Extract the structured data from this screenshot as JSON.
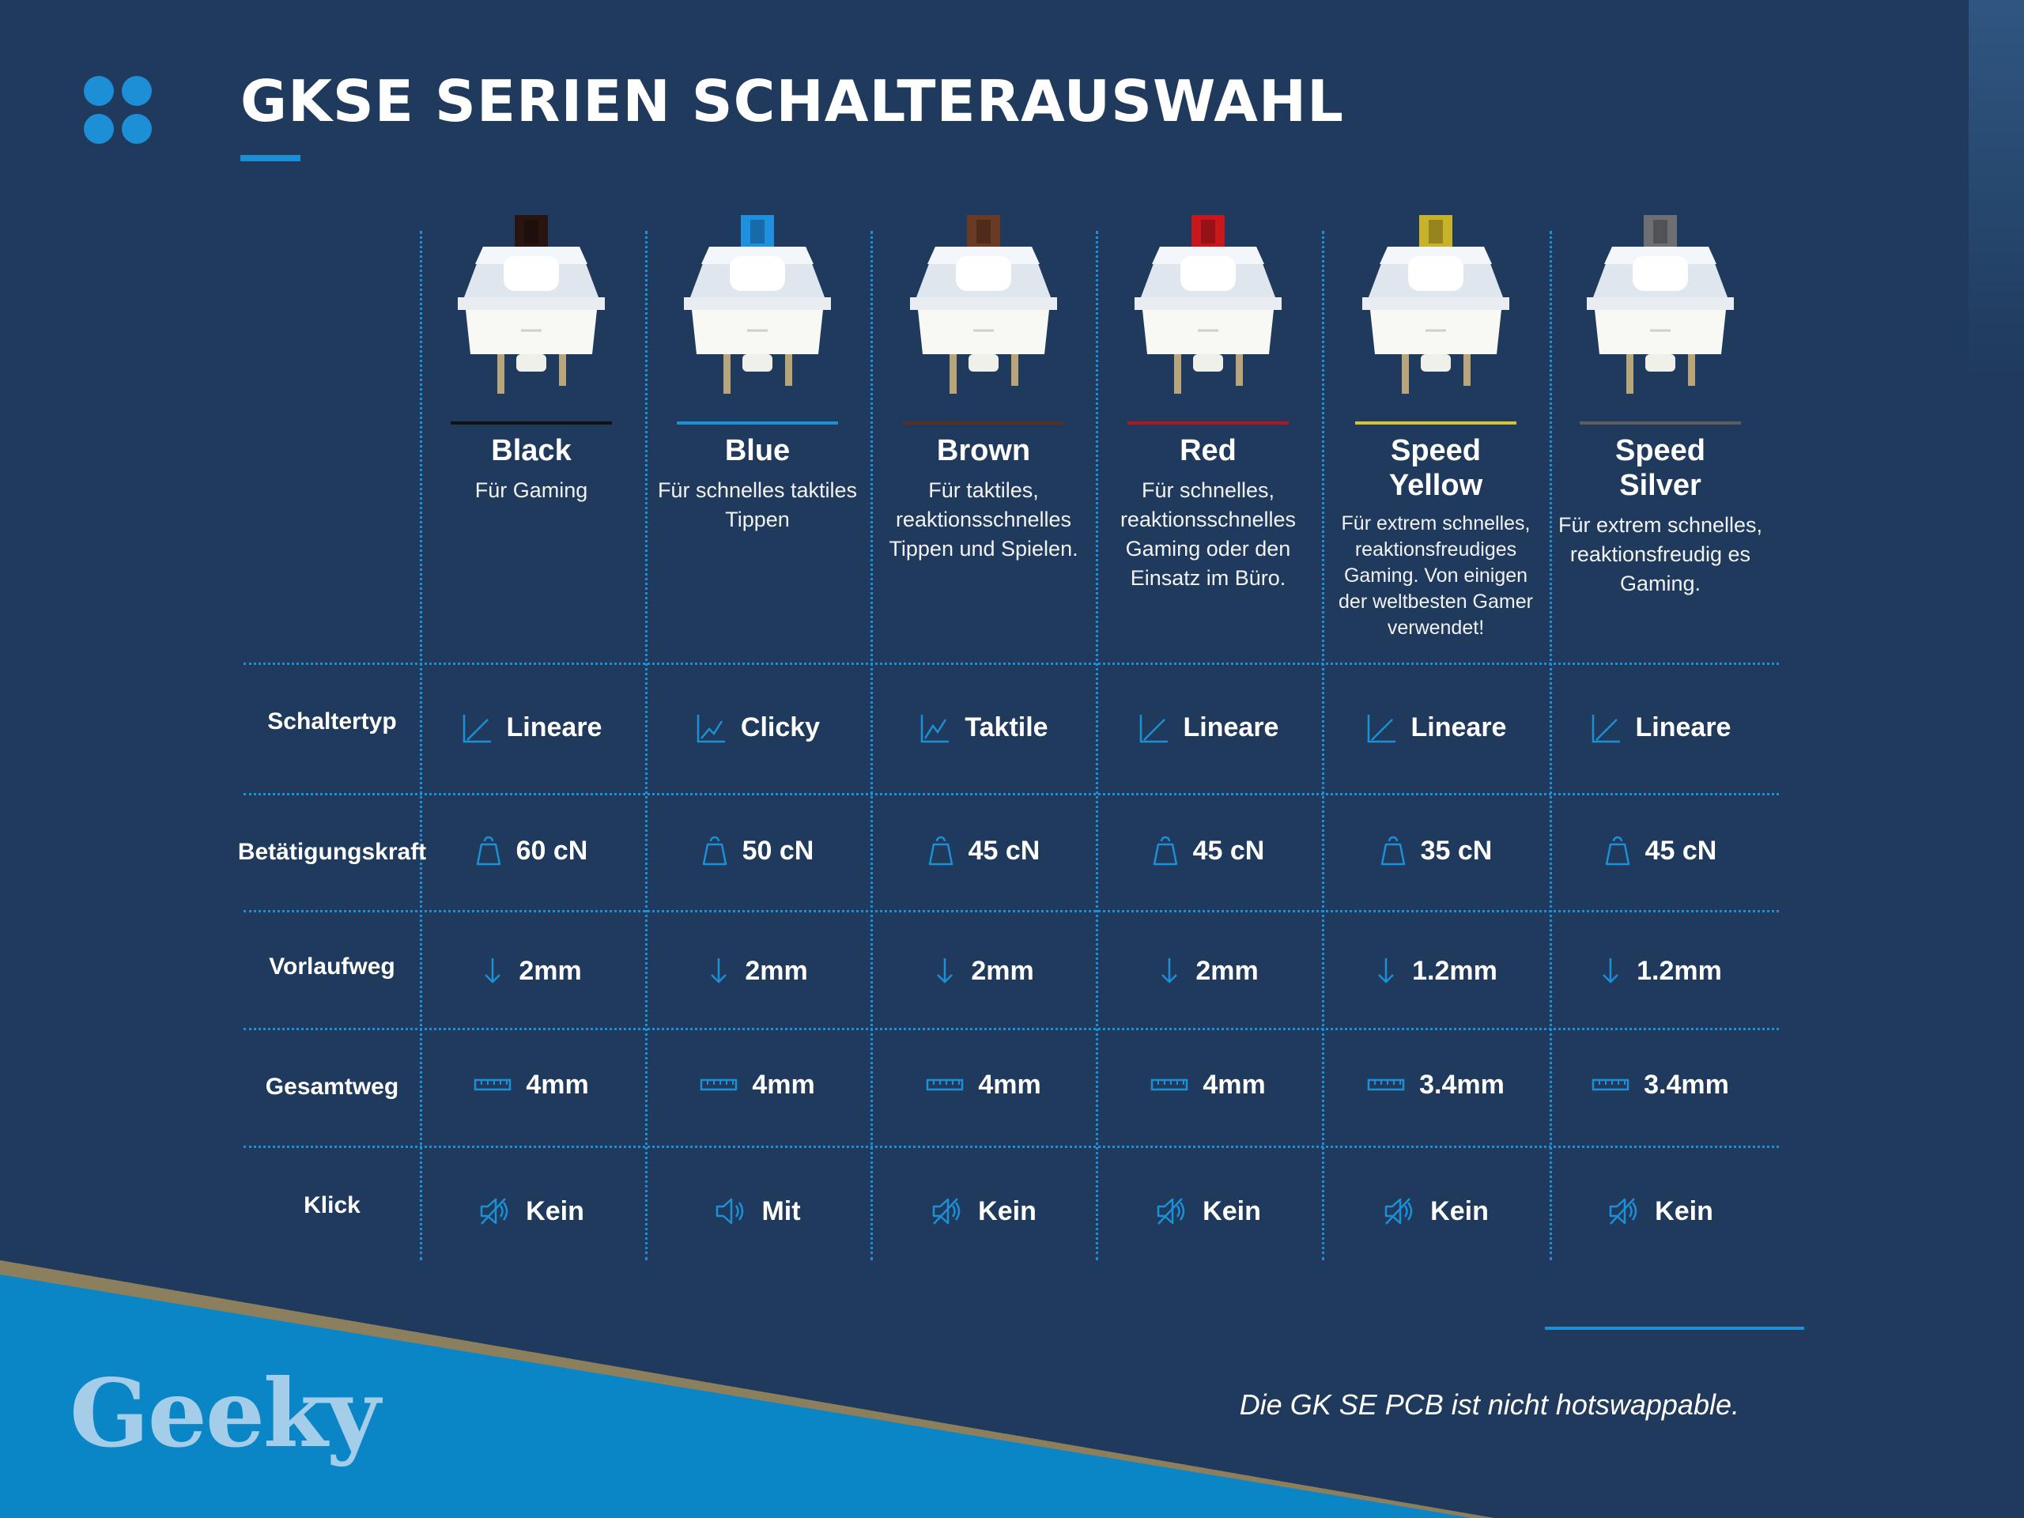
{
  "title": "GKSE SERIEN SCHALTERAUSWAHL",
  "brand": "Geeky",
  "footnote": "Die GK SE PCB ist nicht hotswappable.",
  "colors": {
    "background": "#1f3a5c",
    "accent": "#1c8fd6",
    "band": "#0a86c6",
    "band_stripe": "#8b7f5e",
    "brand": "#a3cde8"
  },
  "row_labels": {
    "type": "Schaltertyp",
    "force": "Betätigungskraft",
    "pretravel": "Vorlaufweg",
    "total": "Gesamtweg",
    "click": "Klick"
  },
  "switches": [
    {
      "name": "Black",
      "description": "Für Gaming",
      "stem_color": "#2a1410",
      "bar_color": "#111111",
      "type": "Lineare",
      "type_icon": "linear-graph-icon",
      "force": "60 cN",
      "pretravel": "2mm",
      "total": "4mm",
      "click": "Kein",
      "click_icon": "speaker-muted-icon"
    },
    {
      "name": "Blue",
      "description": "Für schnelles taktiles Tippen",
      "stem_color": "#1f8fe0",
      "bar_color": "#1c8fd6",
      "type": "Clicky",
      "type_icon": "clicky-graph-icon",
      "force": "50 cN",
      "pretravel": "2mm",
      "total": "4mm",
      "click": "Mit",
      "click_icon": "speaker-sound-icon"
    },
    {
      "name": "Brown",
      "description": "Für taktiles, reaktionsschnelles Tippen und Spielen.",
      "stem_color": "#6b3a24",
      "bar_color": "#5a2e20",
      "type": "Taktile",
      "type_icon": "tactile-graph-icon",
      "force": "45 cN",
      "pretravel": "2mm",
      "total": "4mm",
      "click": "Kein",
      "click_icon": "speaker-muted-icon"
    },
    {
      "name": "Red",
      "description": "Für schnelles, reaktionsschnelles Gaming oder den Einsatz im Büro.",
      "stem_color": "#c8181e",
      "bar_color": "#b0171d",
      "type": "Lineare",
      "type_icon": "linear-graph-icon",
      "force": "45 cN",
      "pretravel": "2mm",
      "total": "4mm",
      "click": "Kein",
      "click_icon": "speaker-muted-icon"
    },
    {
      "name": "Speed\nYellow",
      "description": "Für extrem schnelles, reaktionsfreudiges Gaming. Von einigen der weltbesten Gamer verwendet!",
      "stem_color": "#c8b22a",
      "bar_color": "#d8c232",
      "type": "Lineare",
      "type_icon": "linear-graph-icon",
      "force": "35 cN",
      "pretravel": "1.2mm",
      "total": "3.4mm",
      "click": "Kein",
      "click_icon": "speaker-muted-icon"
    },
    {
      "name": "Speed\nSilver",
      "description": "Für extrem schnelles, reaktionsfreudig es Gaming.",
      "stem_color": "#6d6f73",
      "bar_color": "#5c5e62",
      "type": "Lineare",
      "type_icon": "linear-graph-icon",
      "force": "45 cN",
      "pretravel": "1.2mm",
      "total": "3.4mm",
      "click": "Kein",
      "click_icon": "speaker-muted-icon"
    }
  ]
}
